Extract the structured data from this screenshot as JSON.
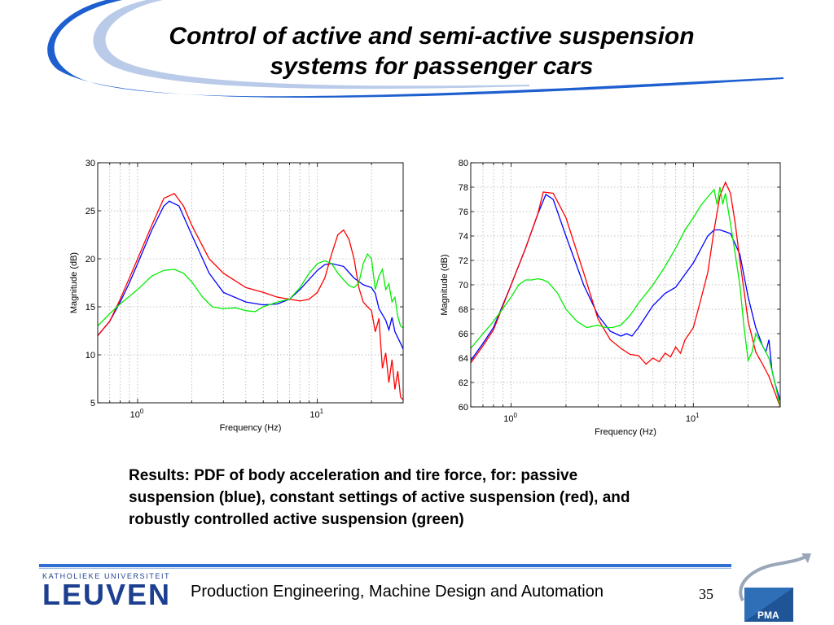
{
  "slide": {
    "title_line1": "Control of active and semi-active suspension",
    "title_line2": "systems for passenger cars",
    "caption_lines": [
      "Results: PDF of body acceleration and tire force, for: passive",
      "suspension (blue), constant settings of active suspension (red), and",
      "robustly controlled active suspension (green)"
    ],
    "footer_text": "Production Engineering, Machine Design and Automation",
    "page_number": "35",
    "logo_top": "KATHOLIEKE UNIVERSITEIT",
    "logo_main": "LEUVEN",
    "pma_label": "PMA",
    "accent_color": "#2f6fd1",
    "logo_color": "#1d3f8f"
  },
  "chart_data": [
    {
      "type": "line",
      "xscale": "log",
      "xlabel": "Frequency (Hz)",
      "ylabel": "Magnitude (dB)",
      "xlim": [
        0.6,
        30
      ],
      "ylim": [
        5,
        30
      ],
      "yticks": [
        5,
        10,
        15,
        20,
        25,
        30
      ],
      "xticks": [
        {
          "value": 1,
          "base": "10",
          "exp": "0"
        },
        {
          "value": 10,
          "base": "10",
          "exp": "1"
        }
      ],
      "grid": true,
      "series": [
        {
          "color": "#0000ff",
          "x": [
            0.6,
            0.7,
            0.8,
            0.9,
            1.0,
            1.2,
            1.4,
            1.5,
            1.7,
            2.0,
            2.5,
            3.0,
            4.0,
            5.0,
            6.0,
            7.0,
            8.0,
            10.0,
            11.0,
            12.0,
            14.0,
            16.0,
            18.0,
            20.0,
            21.0,
            22.0,
            23.0,
            24.0,
            25.0,
            26.0,
            27.0,
            28.0,
            29.0,
            30.0
          ],
          "y": [
            12.0,
            13.5,
            15.5,
            17.5,
            19.5,
            23.0,
            25.5,
            26.0,
            25.5,
            22.5,
            18.5,
            16.5,
            15.5,
            15.2,
            15.3,
            15.8,
            16.8,
            18.8,
            19.4,
            19.5,
            19.2,
            18.0,
            17.3,
            17.0,
            16.4,
            14.8,
            14.2,
            13.6,
            12.6,
            13.9,
            12.4,
            11.8,
            11.2,
            10.6
          ]
        },
        {
          "color": "#ff0000",
          "x": [
            0.6,
            0.7,
            0.8,
            0.9,
            1.0,
            1.2,
            1.4,
            1.6,
            1.8,
            2.0,
            2.5,
            3.0,
            4.0,
            5.0,
            6.0,
            7.0,
            8.0,
            9.0,
            10.0,
            11.0,
            12.0,
            13.0,
            14.0,
            15.0,
            16.0,
            17.0,
            18.0,
            19.0,
            20.0,
            21.0,
            22.0,
            23.0,
            24.0,
            25.0,
            26.0,
            27.0,
            28.0,
            29.0,
            30.0
          ],
          "y": [
            12.0,
            13.5,
            15.8,
            18.0,
            20.0,
            23.5,
            26.3,
            26.8,
            25.5,
            23.5,
            20.0,
            18.5,
            17.0,
            16.5,
            16.0,
            15.8,
            15.6,
            15.8,
            16.5,
            18.0,
            20.5,
            22.5,
            23.0,
            22.0,
            20.0,
            17.0,
            15.5,
            15.0,
            14.6,
            12.4,
            13.8,
            8.6,
            10.2,
            7.1,
            9.5,
            6.4,
            8.3,
            5.6,
            5.3
          ]
        },
        {
          "color": "#00ee00",
          "x": [
            0.6,
            0.7,
            0.8,
            1.0,
            1.2,
            1.4,
            1.6,
            1.8,
            2.0,
            2.3,
            2.6,
            3.0,
            3.5,
            4.0,
            4.5,
            5.0,
            6.0,
            7.0,
            8.0,
            9.0,
            10.0,
            11.0,
            12.0,
            13.0,
            14.0,
            15.0,
            16.0,
            17.0,
            18.0,
            19.0,
            20.0,
            21.0,
            22.0,
            23.0,
            24.0,
            25.0,
            26.0,
            27.0,
            28.0,
            29.0,
            30.0
          ],
          "y": [
            13.0,
            14.3,
            15.3,
            16.8,
            18.2,
            18.8,
            18.9,
            18.5,
            17.6,
            16.0,
            15.0,
            14.8,
            14.9,
            14.6,
            14.5,
            15.0,
            15.5,
            15.8,
            17.0,
            18.5,
            19.5,
            19.8,
            19.5,
            18.5,
            17.8,
            17.2,
            17.0,
            17.5,
            19.5,
            20.5,
            20.0,
            16.8,
            18.2,
            18.9,
            16.8,
            17.4,
            15.5,
            16.0,
            14.0,
            13.0,
            12.8
          ]
        }
      ]
    },
    {
      "type": "line",
      "xscale": "log",
      "xlabel": "Frequency (Hz)",
      "ylabel": "Magnitude (dB)",
      "xlim": [
        0.6,
        30
      ],
      "ylim": [
        60,
        80
      ],
      "yticks": [
        60,
        62,
        64,
        66,
        68,
        70,
        72,
        74,
        76,
        78,
        80
      ],
      "xticks": [
        {
          "value": 1,
          "base": "10",
          "exp": "0"
        },
        {
          "value": 10,
          "base": "10",
          "exp": "1"
        }
      ],
      "grid": true,
      "series": [
        {
          "color": "#0000ff",
          "x": [
            0.6,
            0.7,
            0.8,
            1.0,
            1.2,
            1.4,
            1.55,
            1.7,
            2.0,
            2.5,
            3.0,
            3.5,
            4.0,
            4.3,
            4.6,
            5.0,
            6.0,
            7.0,
            8.0,
            10.0,
            12.0,
            13.0,
            14.0,
            16.0,
            18.0,
            20.0,
            22.0,
            24.0,
            25.0,
            26.0,
            27.0,
            28.0,
            30.0
          ],
          "y": [
            63.8,
            65.2,
            66.5,
            70.0,
            73.0,
            75.8,
            77.4,
            77.0,
            74.0,
            70.0,
            67.5,
            66.2,
            65.8,
            66.0,
            65.8,
            66.5,
            68.3,
            69.3,
            69.8,
            71.8,
            74.0,
            74.5,
            74.5,
            74.2,
            72.5,
            69.0,
            66.5,
            65.0,
            64.5,
            65.5,
            63.0,
            62.0,
            60.5
          ]
        },
        {
          "color": "#ff0000",
          "x": [
            0.6,
            0.7,
            0.8,
            1.0,
            1.2,
            1.4,
            1.5,
            1.7,
            2.0,
            2.5,
            3.0,
            3.5,
            4.0,
            4.5,
            5.0,
            5.5,
            6.0,
            6.5,
            7.0,
            7.5,
            8.0,
            8.5,
            9.0,
            9.5,
            10.0,
            11.0,
            12.0,
            13.0,
            14.0,
            15.0,
            16.0,
            17.0,
            18.0,
            19.0,
            20.0,
            22.0,
            24.0,
            26.0,
            28.0,
            30.0
          ],
          "y": [
            63.6,
            65.0,
            66.3,
            70.0,
            73.0,
            75.8,
            77.6,
            77.5,
            75.5,
            71.0,
            67.2,
            65.5,
            64.8,
            64.3,
            64.2,
            63.5,
            64.0,
            63.7,
            64.4,
            64.1,
            64.9,
            64.4,
            65.5,
            66.0,
            66.5,
            68.8,
            71.0,
            74.5,
            77.3,
            78.4,
            77.5,
            75.0,
            72.0,
            69.5,
            67.0,
            64.5,
            63.5,
            62.5,
            61.2,
            60.0
          ]
        },
        {
          "color": "#00ee00",
          "x": [
            0.6,
            0.7,
            0.8,
            1.0,
            1.1,
            1.2,
            1.3,
            1.4,
            1.5,
            1.6,
            1.8,
            2.0,
            2.3,
            2.6,
            3.0,
            3.3,
            3.6,
            4.0,
            4.5,
            5.0,
            6.0,
            7.0,
            8.0,
            9.0,
            10.0,
            11.0,
            12.0,
            13.0,
            13.5,
            14.0,
            14.5,
            15.0,
            16.0,
            17.0,
            18.0,
            19.0,
            20.0,
            21.0,
            22.0,
            24.0,
            26.0,
            28.0,
            30.0
          ],
          "y": [
            64.8,
            66.0,
            67.0,
            69.0,
            70.0,
            70.4,
            70.4,
            70.5,
            70.4,
            70.2,
            69.3,
            68.0,
            67.0,
            66.5,
            66.7,
            66.5,
            66.5,
            66.7,
            67.5,
            68.5,
            70.0,
            71.5,
            73.0,
            74.5,
            75.5,
            76.5,
            77.2,
            77.8,
            76.6,
            78.0,
            76.6,
            77.5,
            75.0,
            72.5,
            70.0,
            66.5,
            63.8,
            64.5,
            66.0,
            65.0,
            64.0,
            62.0,
            60.0
          ]
        }
      ]
    }
  ]
}
